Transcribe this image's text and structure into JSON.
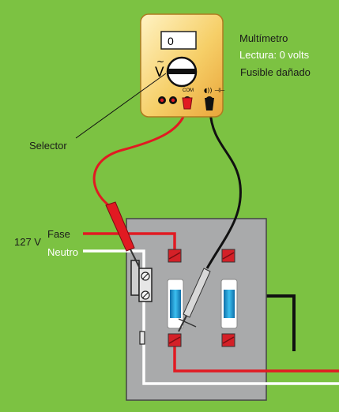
{
  "multimeter": {
    "title": "Multímetro",
    "reading": "Lectura: 0 volts",
    "fuse_status": "Fusible dañado",
    "display_value": "0",
    "mode_symbol": "V",
    "mode_tilde": "~",
    "com_label": "COM",
    "port_symbols": "◖)) ⊣⊢"
  },
  "labels": {
    "selector": "Selector",
    "voltage": "127 V",
    "phase": "Fase",
    "neutral": "Neutro"
  },
  "colors": {
    "background": "#7cc242",
    "panel": "#a9aaab",
    "meter_body": "#f6cf68",
    "phase_wire": "#e11a22",
    "neutral_wire": "#ffffff",
    "probe_black": "#1a1a1a",
    "fuse_blue": "#1e9fd8"
  }
}
